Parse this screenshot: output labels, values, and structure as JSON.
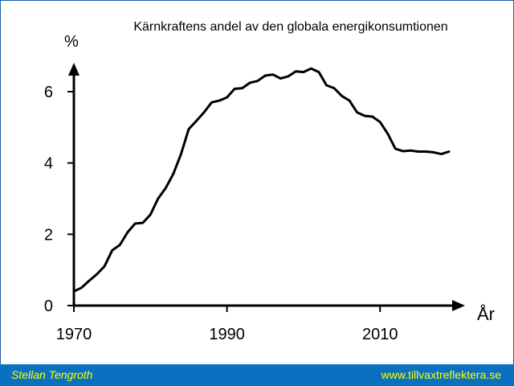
{
  "chart_data": {
    "type": "line",
    "title": "Kärnkraftens andel av den globala energikonsumtionen",
    "ylabel": "%",
    "xlabel": "År",
    "xlim": [
      1970,
      2020
    ],
    "ylim": [
      0,
      7
    ],
    "xticks": [
      1970,
      1990,
      2010
    ],
    "xtick_labels": [
      "1970",
      "1990",
      "2010"
    ],
    "yticks": [
      0,
      2,
      4,
      6
    ],
    "ytick_labels": [
      "0",
      "2",
      "4",
      "6"
    ],
    "grid": false,
    "series": [
      {
        "color": "#000000",
        "x": [
          1970,
          1971,
          1972,
          1973,
          1974,
          1975,
          1976,
          1977,
          1978,
          1979,
          1980,
          1981,
          1982,
          1983,
          1984,
          1985,
          1986,
          1987,
          1988,
          1989,
          1990,
          1991,
          1992,
          1993,
          1994,
          1995,
          1996,
          1997,
          1998,
          1999,
          2000,
          2001,
          2002,
          2003,
          2004,
          2005,
          2006,
          2007,
          2008,
          2009,
          2010,
          2011,
          2012,
          2013,
          2014,
          2015,
          2016,
          2017,
          2018,
          2019
        ],
        "y": [
          0.4,
          0.5,
          0.7,
          0.88,
          1.1,
          1.55,
          1.7,
          2.05,
          2.3,
          2.32,
          2.55,
          3.0,
          3.3,
          3.7,
          4.25,
          4.95,
          5.18,
          5.42,
          5.7,
          5.75,
          5.84,
          6.08,
          6.1,
          6.25,
          6.3,
          6.45,
          6.48,
          6.37,
          6.43,
          6.57,
          6.55,
          6.65,
          6.55,
          6.18,
          6.1,
          5.88,
          5.75,
          5.42,
          5.32,
          5.3,
          5.15,
          4.82,
          4.4,
          4.33,
          4.35,
          4.32,
          4.32,
          4.3,
          4.25,
          4.32
        ]
      }
    ]
  },
  "footer": {
    "author": "Stellan Tengroth",
    "website": "www.tillvaxtreflektera.se"
  }
}
